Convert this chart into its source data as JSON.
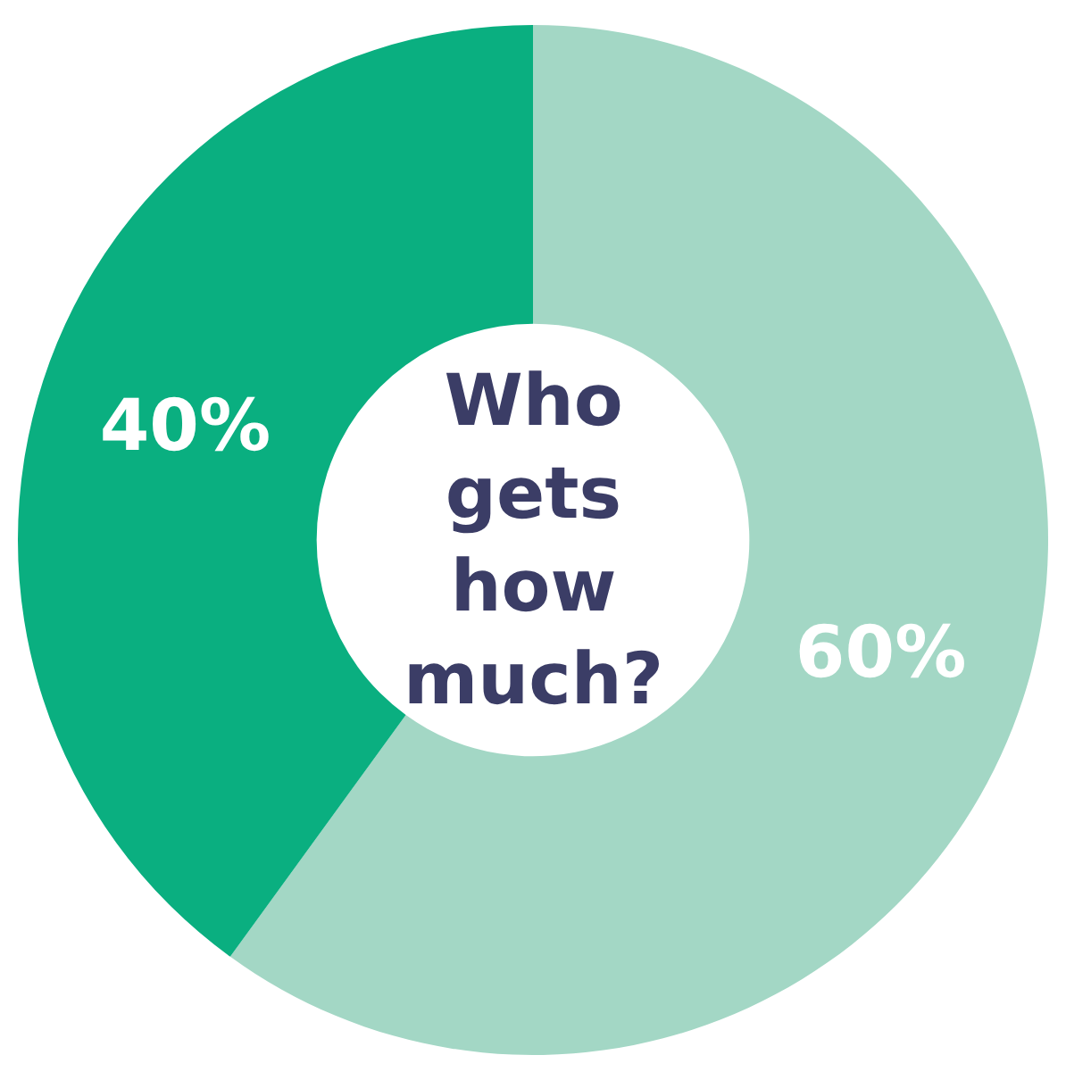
{
  "chart_data": {
    "type": "donut",
    "title": "Who gets how much?",
    "categories": [
      null,
      null
    ],
    "values": [
      60,
      40
    ],
    "colors": [
      "#a3d7c5",
      "#0aaf80"
    ],
    "value_labels": [
      "60%",
      "40%"
    ],
    "legend": false
  }
}
